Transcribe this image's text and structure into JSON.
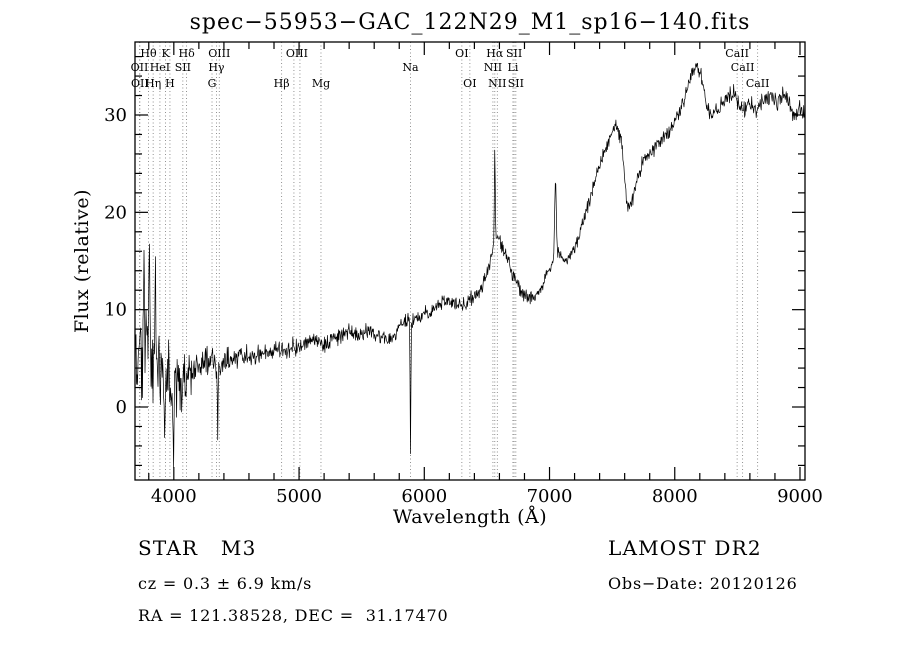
{
  "title": "spec−55953−GAC_122N29_M1_sp16−140.fits",
  "footer": {
    "class_label": "STAR   M3",
    "survey": "LAMOST DR2",
    "cz": "cz = 0.3 ± 6.9 km/s",
    "obs_date": "Obs−Date: 20120126",
    "ra_dec": "RA = 121.38528, DEC =  31.17470"
  },
  "chart_data": {
    "type": "line",
    "title": "spec−55953−GAC_122N29_M1_sp16−140.fits",
    "xlabel": "Wavelength (Å)",
    "ylabel": "Flux (relative)",
    "xlim": [
      3690,
      9040
    ],
    "ylim": [
      -7.5,
      37.5
    ],
    "xticks": [
      4000,
      5000,
      6000,
      7000,
      8000,
      9000
    ],
    "yticks": [
      0,
      10,
      20,
      30
    ],
    "x_minor_step": 200,
    "y_minor_step": 2,
    "grid": false,
    "line_color": "#000000",
    "marker_line_color": "#777777",
    "sample_step": 4,
    "noise_seed": 20120126,
    "spectral_line_wavelengths": [
      3726,
      3729,
      3798,
      3835,
      3889,
      3934,
      3969,
      4072,
      4102,
      4305,
      4340,
      4363,
      4861,
      4959,
      5007,
      5175,
      5890,
      6300,
      6364,
      6548,
      6563,
      6583,
      6708,
      6717,
      6731,
      8498,
      8542,
      8662
    ],
    "spectral_line_labels": [
      {
        "text": "OII",
        "row": 2,
        "wavelength": 3726
      },
      {
        "text": "OII",
        "row": 3,
        "wavelength": 3729
      },
      {
        "text": "Hθ",
        "row": 1,
        "wavelength": 3798
      },
      {
        "text": "Hη",
        "row": 3,
        "wavelength": 3835
      },
      {
        "text": "HeI",
        "row": 2,
        "wavelength": 3889
      },
      {
        "text": "K",
        "row": 1,
        "wavelength": 3934
      },
      {
        "text": "H",
        "row": 3,
        "wavelength": 3969
      },
      {
        "text": "SII",
        "row": 2,
        "wavelength": 4072
      },
      {
        "text": "Hδ",
        "row": 1,
        "wavelength": 4102
      },
      {
        "text": "G",
        "row": 3,
        "wavelength": 4305
      },
      {
        "text": "Hγ",
        "row": 2,
        "wavelength": 4340
      },
      {
        "text": "OIII",
        "row": 1,
        "wavelength": 4363
      },
      {
        "text": "Hβ",
        "row": 3,
        "wavelength": 4861
      },
      {
        "text": "OIII",
        "row": 1,
        "wavelength": 4983
      },
      {
        "text": "Mg",
        "row": 3,
        "wavelength": 5175
      },
      {
        "text": "Na",
        "row": 2,
        "wavelength": 5890
      },
      {
        "text": "OI",
        "row": 1,
        "wavelength": 6300
      },
      {
        "text": "OI",
        "row": 3,
        "wavelength": 6364
      },
      {
        "text": "NII",
        "row": 2,
        "wavelength": 6548
      },
      {
        "text": "Hα",
        "row": 1,
        "wavelength": 6563
      },
      {
        "text": "NII",
        "row": 3,
        "wavelength": 6583
      },
      {
        "text": "Li",
        "row": 2,
        "wavelength": 6708
      },
      {
        "text": "SII",
        "row": 1,
        "wavelength": 6717
      },
      {
        "text": "SII",
        "row": 3,
        "wavelength": 6731
      },
      {
        "text": "CaII",
        "row": 1,
        "wavelength": 8498
      },
      {
        "text": "CaII",
        "row": 2,
        "wavelength": 8542
      },
      {
        "text": "CaII",
        "row": 3,
        "wavelength": 8662
      }
    ],
    "continuum_anchors": [
      [
        3690,
        4
      ],
      [
        3740,
        5
      ],
      [
        3790,
        6
      ],
      [
        3840,
        4.5
      ],
      [
        3900,
        3.5
      ],
      [
        3950,
        3
      ],
      [
        4000,
        2.6
      ],
      [
        4060,
        2.6
      ],
      [
        4120,
        3.2
      ],
      [
        4200,
        4
      ],
      [
        4300,
        4.6
      ],
      [
        4360,
        4.2
      ],
      [
        4420,
        5
      ],
      [
        4500,
        5.2
      ],
      [
        4600,
        5.3
      ],
      [
        4700,
        5.5
      ],
      [
        4800,
        5.8
      ],
      [
        4880,
        5.8
      ],
      [
        4960,
        6.2
      ],
      [
        5050,
        6.6
      ],
      [
        5150,
        6.6
      ],
      [
        5200,
        6.4
      ],
      [
        5300,
        7
      ],
      [
        5400,
        7.8
      ],
      [
        5480,
        7.4
      ],
      [
        5560,
        7.9
      ],
      [
        5650,
        7.2
      ],
      [
        5720,
        6.9
      ],
      [
        5800,
        8.2
      ],
      [
        5870,
        8.8
      ],
      [
        5920,
        9
      ],
      [
        6000,
        9.6
      ],
      [
        6080,
        10
      ],
      [
        6160,
        11
      ],
      [
        6250,
        10.6
      ],
      [
        6310,
        10.4
      ],
      [
        6400,
        11.4
      ],
      [
        6460,
        12.4
      ],
      [
        6520,
        14.5
      ],
      [
        6560,
        17.2
      ],
      [
        6600,
        17
      ],
      [
        6650,
        15.8
      ],
      [
        6700,
        13.8
      ],
      [
        6760,
        12.2
      ],
      [
        6820,
        11.4
      ],
      [
        6880,
        11.2
      ],
      [
        6940,
        12.4
      ],
      [
        7000,
        14.2
      ],
      [
        7060,
        15.8
      ],
      [
        7120,
        15.2
      ],
      [
        7180,
        15.4
      ],
      [
        7240,
        17.6
      ],
      [
        7300,
        20.5
      ],
      [
        7380,
        24
      ],
      [
        7460,
        27
      ],
      [
        7540,
        29
      ],
      [
        7580,
        27
      ],
      [
        7620,
        20.5
      ],
      [
        7660,
        21
      ],
      [
        7700,
        23.5
      ],
      [
        7760,
        25.8
      ],
      [
        7820,
        26.4
      ],
      [
        7880,
        27
      ],
      [
        7940,
        28
      ],
      [
        8000,
        29.4
      ],
      [
        8060,
        31
      ],
      [
        8120,
        33.4
      ],
      [
        8170,
        35
      ],
      [
        8210,
        34.2
      ],
      [
        8260,
        31
      ],
      [
        8300,
        29.8
      ],
      [
        8360,
        31
      ],
      [
        8420,
        32
      ],
      [
        8470,
        32.2
      ],
      [
        8510,
        31
      ],
      [
        8550,
        30.4
      ],
      [
        8600,
        31.4
      ],
      [
        8650,
        30.4
      ],
      [
        8700,
        31.4
      ],
      [
        8760,
        32
      ],
      [
        8820,
        31
      ],
      [
        8870,
        32.4
      ],
      [
        8920,
        30.8
      ],
      [
        8960,
        29.6
      ],
      [
        9000,
        30.8
      ],
      [
        9040,
        30
      ]
    ],
    "noise_anchors": [
      [
        3690,
        6.5
      ],
      [
        3850,
        6.5
      ],
      [
        3950,
        5.5
      ],
      [
        4020,
        4
      ],
      [
        4100,
        3
      ],
      [
        4200,
        2.2
      ],
      [
        4350,
        1.8
      ],
      [
        4500,
        1.4
      ],
      [
        4800,
        1.2
      ],
      [
        5200,
        1.1
      ],
      [
        5600,
        1.0
      ],
      [
        6000,
        0.9
      ],
      [
        6400,
        0.9
      ],
      [
        6800,
        0.9
      ],
      [
        7200,
        0.9
      ],
      [
        7600,
        0.9
      ],
      [
        8000,
        0.9
      ],
      [
        8400,
        1.0
      ],
      [
        9040,
        1.1
      ]
    ],
    "features": [
      {
        "wavelength": 3762,
        "flux": 14,
        "width": 4
      },
      {
        "wavelength": 3805,
        "flux": 17.5,
        "width": 4
      },
      {
        "wavelength": 3852,
        "flux": 12,
        "width": 4
      },
      {
        "wavelength": 3925,
        "flux": -5,
        "width": 4
      },
      {
        "wavelength": 3995,
        "flux": -5,
        "width": 4
      },
      {
        "wavelength": 4350,
        "flux": -2.6,
        "width": 3
      },
      {
        "wavelength": 5890,
        "flux": -4.5,
        "width": 3
      },
      {
        "wavelength": 6563,
        "flux": 26.8,
        "width": 3.5
      },
      {
        "wavelength": 7047,
        "flux": 23.5,
        "width": 6
      }
    ]
  }
}
